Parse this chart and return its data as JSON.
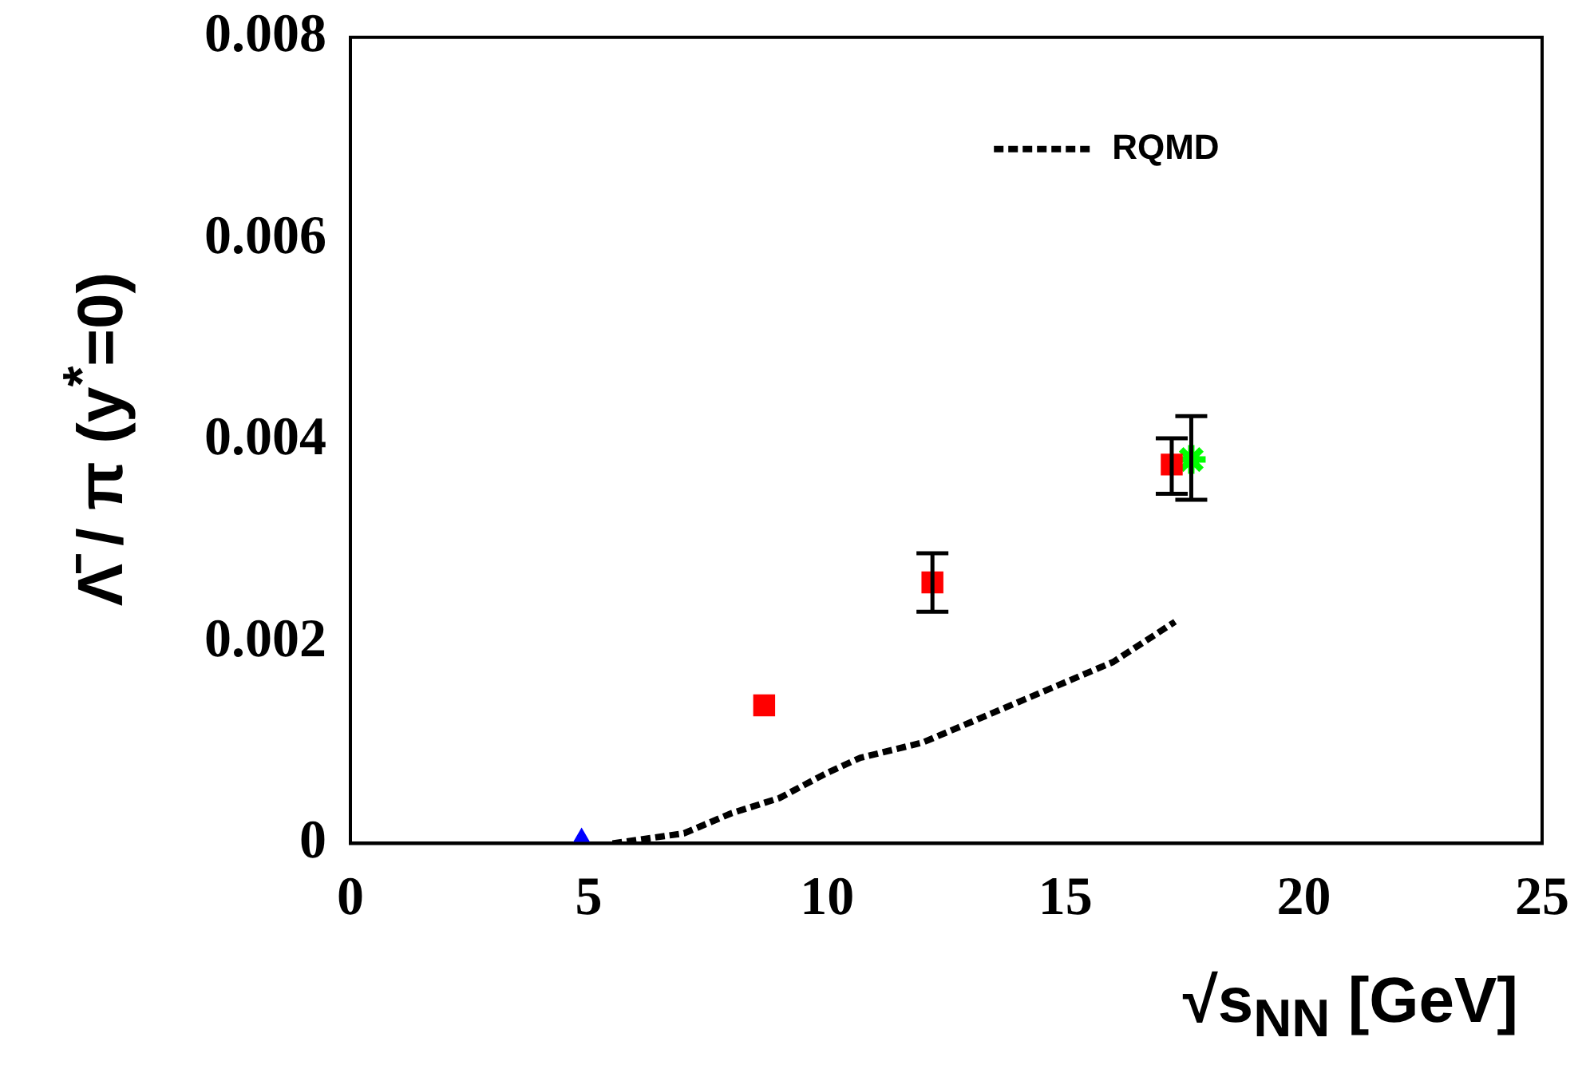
{
  "chart_data": {
    "type": "scatter",
    "xlabel": "√s$_{NN}$ [GeV]",
    "ylabel": "Λ̄ / π (y$^{*}$=0)",
    "xlim": [
      0,
      25
    ],
    "xticks": [
      0,
      5,
      10,
      15,
      20,
      25
    ],
    "ylim": [
      0,
      0.008
    ],
    "yticks": [
      0,
      0.002,
      0.004,
      0.006,
      0.008
    ],
    "grid": false,
    "legend": "top right",
    "series": [
      {
        "name": "RQMD",
        "type": "line",
        "color": "#000000",
        "line_style": "dashed",
        "marker": "none",
        "x": [
          5.5,
          7,
          8,
          9,
          10,
          10.7,
          12,
          13,
          14,
          15,
          16,
          17.3
        ],
        "values": [
          0,
          0.0001,
          0.0003,
          0.00045,
          0.0007,
          0.00085,
          0.001,
          0.0012,
          0.0014,
          0.0016,
          0.0018,
          0.0022
        ]
      },
      {
        "color": "#0000ff",
        "marker": "triangle",
        "x": [
          4.85
        ],
        "values": [
          0
        ]
      },
      {
        "color": "#ff0000",
        "marker": "square",
        "x": [
          8.68,
          12.21,
          17.23
        ],
        "values": [
          0.00137,
          0.00259,
          0.00376
        ],
        "errors": [
          null,
          [
            0.0023,
            0.00288
          ],
          [
            0.00347,
            0.00402
          ]
        ]
      },
      {
        "color": "#00ff00",
        "marker": "cross",
        "x": [
          17.64
        ],
        "values": [
          0.00381
        ],
        "errors": [
          [
            0.00341,
            0.00424
          ]
        ]
      }
    ]
  }
}
